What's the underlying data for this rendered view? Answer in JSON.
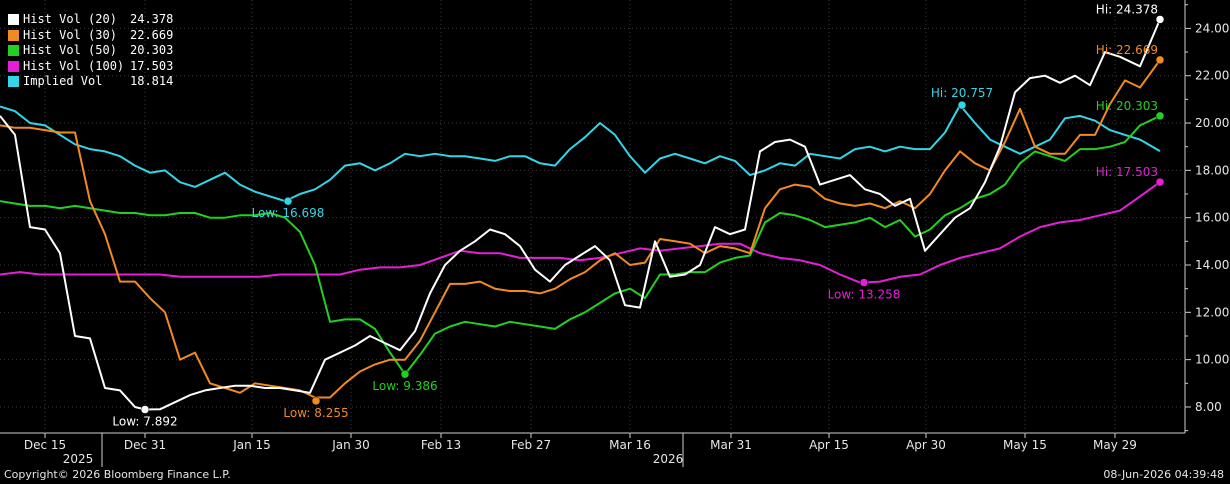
{
  "footer": {
    "copyright": "Copyright© 2026 Bloomberg Finance L.P.",
    "timestamp": "08-Jun-2026 04:39:48"
  },
  "chart_data": {
    "type": "line",
    "x_range": [
      0,
      1185
    ],
    "ylim": [
      6.9,
      25.2
    ],
    "y_ticks": [
      8,
      10,
      12,
      14,
      16,
      18,
      20,
      22,
      24
    ],
    "y_tick_labels": [
      "8.00",
      "10.00",
      "12.00",
      "14.00",
      "16.00",
      "18.00",
      "20.00",
      "22.00",
      "24.00"
    ],
    "x_ticks": [
      {
        "x": 45,
        "label": "Dec 15"
      },
      {
        "x": 145,
        "label": "Dec 31"
      },
      {
        "x": 252,
        "label": "Jan 15"
      },
      {
        "x": 351,
        "label": "Jan 30"
      },
      {
        "x": 441,
        "label": "Feb 13"
      },
      {
        "x": 531,
        "label": "Feb 27"
      },
      {
        "x": 630,
        "label": "Mar 16"
      },
      {
        "x": 731,
        "label": "Mar 31"
      },
      {
        "x": 829,
        "label": "Apr 15"
      },
      {
        "x": 926,
        "label": "Apr 30"
      },
      {
        "x": 1025,
        "label": "May 15"
      },
      {
        "x": 1115,
        "label": "May 29"
      }
    ],
    "year_labels": [
      {
        "x": 78,
        "label": "2025"
      },
      {
        "x": 668,
        "label": "2026"
      }
    ],
    "series": [
      {
        "name": "Implied Vol",
        "last": "18.814",
        "color": "#33d6e8",
        "x": [
          0,
          15,
          30,
          45,
          60,
          75,
          90,
          105,
          120,
          135,
          150,
          165,
          180,
          195,
          210,
          225,
          240,
          255,
          270,
          285,
          300,
          315,
          330,
          345,
          360,
          375,
          390,
          405,
          420,
          435,
          450,
          465,
          480,
          495,
          510,
          525,
          540,
          555,
          570,
          585,
          600,
          615,
          630,
          645,
          660,
          675,
          690,
          705,
          720,
          735,
          750,
          765,
          780,
          795,
          810,
          825,
          840,
          855,
          870,
          885,
          900,
          915,
          930,
          945,
          960,
          975,
          990,
          1005,
          1020,
          1035,
          1050,
          1065,
          1080,
          1095,
          1110,
          1125,
          1140,
          1160
        ],
        "y": [
          20.7,
          20.5,
          20.0,
          19.9,
          19.5,
          19.1,
          18.9,
          18.8,
          18.6,
          18.2,
          17.9,
          18.0,
          17.5,
          17.3,
          17.6,
          17.9,
          17.4,
          17.1,
          16.9,
          16.7,
          17.0,
          17.2,
          17.6,
          18.2,
          18.3,
          18.0,
          18.3,
          18.7,
          18.6,
          18.7,
          18.6,
          18.6,
          18.5,
          18.4,
          18.6,
          18.6,
          18.3,
          18.2,
          18.9,
          19.4,
          20.0,
          19.5,
          18.6,
          17.9,
          18.5,
          18.7,
          18.5,
          18.3,
          18.6,
          18.4,
          17.8,
          18.0,
          18.3,
          18.2,
          18.7,
          18.6,
          18.5,
          18.9,
          19.0,
          18.8,
          19.0,
          18.9,
          18.9,
          19.6,
          20.757,
          20.0,
          19.3,
          19.0,
          18.7,
          19.0,
          19.3,
          20.2,
          20.3,
          20.1,
          19.7,
          19.5,
          19.3,
          18.814
        ],
        "marker": {
          "x": 962,
          "y": 20.757,
          "label": "Hi: 20.757",
          "pos": "above"
        },
        "marker2": {
          "x": 288,
          "y": 16.698,
          "label": "Low: 16.698",
          "pos": "below"
        }
      },
      {
        "name": "Hist Vol (100)",
        "last": "17.503",
        "color": "#e51fd8",
        "x": [
          0,
          20,
          40,
          60,
          80,
          100,
          120,
          140,
          160,
          180,
          200,
          220,
          240,
          260,
          280,
          300,
          320,
          340,
          360,
          380,
          400,
          420,
          440,
          460,
          480,
          500,
          520,
          540,
          560,
          580,
          600,
          620,
          640,
          660,
          680,
          700,
          720,
          740,
          760,
          780,
          800,
          820,
          840,
          860,
          880,
          900,
          920,
          940,
          960,
          980,
          1000,
          1020,
          1040,
          1060,
          1080,
          1100,
          1120,
          1140,
          1160
        ],
        "y": [
          13.6,
          13.7,
          13.6,
          13.6,
          13.6,
          13.6,
          13.6,
          13.6,
          13.6,
          13.5,
          13.5,
          13.5,
          13.5,
          13.5,
          13.6,
          13.6,
          13.6,
          13.6,
          13.8,
          13.9,
          13.9,
          14.0,
          14.3,
          14.6,
          14.5,
          14.5,
          14.3,
          14.3,
          14.3,
          14.2,
          14.3,
          14.5,
          14.7,
          14.6,
          14.7,
          14.8,
          14.9,
          14.9,
          14.5,
          14.3,
          14.2,
          14.0,
          13.6,
          13.258,
          13.3,
          13.5,
          13.6,
          14.0,
          14.3,
          14.5,
          14.7,
          15.2,
          15.6,
          15.8,
          15.9,
          16.1,
          16.3,
          16.9,
          17.503
        ],
        "marker": {
          "x": 864,
          "y": 13.258,
          "label": "Low: 13.258",
          "pos": "below"
        },
        "marker2": {
          "x": 1160,
          "y": 17.503,
          "label": "Hi: 17.503",
          "pos": "left"
        }
      },
      {
        "name": "Hist Vol (50)",
        "last": "20.303",
        "color": "#22d11f",
        "x": [
          0,
          15,
          30,
          45,
          60,
          75,
          90,
          105,
          120,
          135,
          150,
          165,
          180,
          195,
          210,
          225,
          240,
          255,
          270,
          285,
          300,
          315,
          330,
          345,
          360,
          375,
          390,
          405,
          420,
          435,
          450,
          465,
          480,
          495,
          510,
          525,
          540,
          555,
          570,
          585,
          600,
          615,
          630,
          645,
          660,
          675,
          690,
          705,
          720,
          735,
          750,
          765,
          780,
          795,
          810,
          825,
          840,
          855,
          870,
          885,
          900,
          915,
          930,
          945,
          960,
          975,
          990,
          1005,
          1020,
          1035,
          1050,
          1065,
          1080,
          1095,
          1110,
          1125,
          1140,
          1160
        ],
        "y": [
          16.7,
          16.6,
          16.5,
          16.5,
          16.4,
          16.5,
          16.4,
          16.3,
          16.2,
          16.2,
          16.1,
          16.1,
          16.2,
          16.2,
          16.0,
          16.0,
          16.1,
          16.1,
          16.2,
          16.0,
          15.4,
          14.0,
          11.6,
          11.7,
          11.7,
          11.3,
          10.3,
          9.386,
          10.2,
          11.1,
          11.4,
          11.6,
          11.5,
          11.4,
          11.6,
          11.5,
          11.4,
          11.3,
          11.7,
          12.0,
          12.4,
          12.8,
          13.0,
          12.6,
          13.6,
          13.6,
          13.7,
          13.7,
          14.1,
          14.3,
          14.4,
          15.8,
          16.2,
          16.1,
          15.9,
          15.6,
          15.7,
          15.8,
          16.0,
          15.6,
          15.9,
          15.2,
          15.5,
          16.1,
          16.4,
          16.8,
          17.0,
          17.4,
          18.3,
          18.8,
          18.6,
          18.4,
          18.9,
          18.9,
          19.0,
          19.2,
          19.9,
          20.303
        ],
        "marker": {
          "x": 405,
          "y": 9.386,
          "label": "Low: 9.386",
          "pos": "below"
        },
        "marker2": {
          "x": 1160,
          "y": 20.303,
          "label": "Hi: 20.303",
          "pos": "left"
        }
      },
      {
        "name": "Hist Vol (30)",
        "last": "22.669",
        "color": "#f28a22",
        "x": [
          0,
          15,
          30,
          45,
          60,
          75,
          90,
          105,
          120,
          135,
          150,
          165,
          180,
          195,
          210,
          225,
          240,
          255,
          270,
          285,
          300,
          315,
          330,
          345,
          360,
          375,
          390,
          405,
          420,
          435,
          450,
          465,
          480,
          495,
          510,
          525,
          540,
          555,
          570,
          585,
          600,
          615,
          630,
          645,
          660,
          675,
          690,
          705,
          720,
          735,
          750,
          765,
          780,
          795,
          810,
          825,
          840,
          855,
          870,
          885,
          900,
          915,
          930,
          945,
          960,
          975,
          990,
          1005,
          1020,
          1035,
          1050,
          1065,
          1080,
          1095,
          1110,
          1125,
          1140,
          1160
        ],
        "y": [
          19.9,
          19.8,
          19.8,
          19.7,
          19.6,
          19.6,
          16.7,
          15.3,
          13.3,
          13.3,
          12.6,
          12.0,
          10.0,
          10.3,
          9.0,
          8.8,
          8.6,
          9.0,
          8.9,
          8.8,
          8.7,
          8.4,
          8.4,
          9.0,
          9.5,
          9.8,
          10.0,
          10.0,
          10.8,
          12.0,
          13.2,
          13.2,
          13.3,
          13.0,
          12.9,
          12.9,
          12.8,
          13.0,
          13.4,
          13.7,
          14.2,
          14.5,
          14.0,
          14.1,
          15.1,
          15.0,
          14.9,
          14.5,
          14.8,
          14.7,
          14.5,
          16.4,
          17.2,
          17.4,
          17.3,
          16.8,
          16.6,
          16.5,
          16.6,
          16.4,
          16.7,
          16.4,
          17.0,
          18.0,
          18.8,
          18.3,
          18.0,
          19.2,
          20.6,
          19.0,
          18.7,
          18.7,
          19.5,
          19.5,
          20.8,
          21.8,
          21.5,
          22.669
        ],
        "marker": {
          "x": 316,
          "y": 8.255,
          "label": "Low: 8.255",
          "pos": "below"
        },
        "marker2": {
          "x": 1160,
          "y": 22.669,
          "label": "Hi: 22.669",
          "pos": "left"
        }
      },
      {
        "name": "Hist Vol (20)",
        "last": "24.378",
        "color": "#ffffff",
        "x": [
          0,
          15,
          30,
          45,
          60,
          75,
          90,
          105,
          120,
          135,
          145,
          160,
          175,
          190,
          205,
          220,
          235,
          250,
          265,
          280,
          295,
          310,
          325,
          340,
          355,
          370,
          385,
          400,
          415,
          430,
          445,
          460,
          475,
          490,
          505,
          520,
          535,
          550,
          565,
          580,
          595,
          610,
          625,
          640,
          655,
          670,
          685,
          700,
          715,
          730,
          745,
          760,
          775,
          790,
          805,
          820,
          835,
          850,
          865,
          880,
          895,
          910,
          925,
          940,
          955,
          970,
          985,
          1000,
          1015,
          1030,
          1045,
          1060,
          1075,
          1090,
          1105,
          1120,
          1140,
          1160
        ],
        "y": [
          20.3,
          19.5,
          15.6,
          15.5,
          14.5,
          11.0,
          10.9,
          8.8,
          8.7,
          8.0,
          7.892,
          7.9,
          8.2,
          8.5,
          8.7,
          8.8,
          8.9,
          8.9,
          8.8,
          8.8,
          8.7,
          8.6,
          10.0,
          10.3,
          10.6,
          11.0,
          10.7,
          10.4,
          11.2,
          12.8,
          14.0,
          14.6,
          15.0,
          15.5,
          15.3,
          14.8,
          13.8,
          13.3,
          14.0,
          14.4,
          14.8,
          14.2,
          12.3,
          12.2,
          15.0,
          13.5,
          13.6,
          14.0,
          15.6,
          15.3,
          15.5,
          18.8,
          19.2,
          19.3,
          19.0,
          17.4,
          17.6,
          17.8,
          17.2,
          17.0,
          16.5,
          16.8,
          14.6,
          15.3,
          16.0,
          16.4,
          17.5,
          19.0,
          21.3,
          21.9,
          22.0,
          21.7,
          22.0,
          21.6,
          23.0,
          22.8,
          22.4,
          24.378
        ],
        "marker": {
          "x": 145,
          "y": 7.892,
          "label": "Low: 7.892",
          "pos": "below"
        },
        "marker2": {
          "x": 1160,
          "y": 24.378,
          "label": "Hi: 24.378",
          "pos": "left"
        }
      }
    ]
  }
}
